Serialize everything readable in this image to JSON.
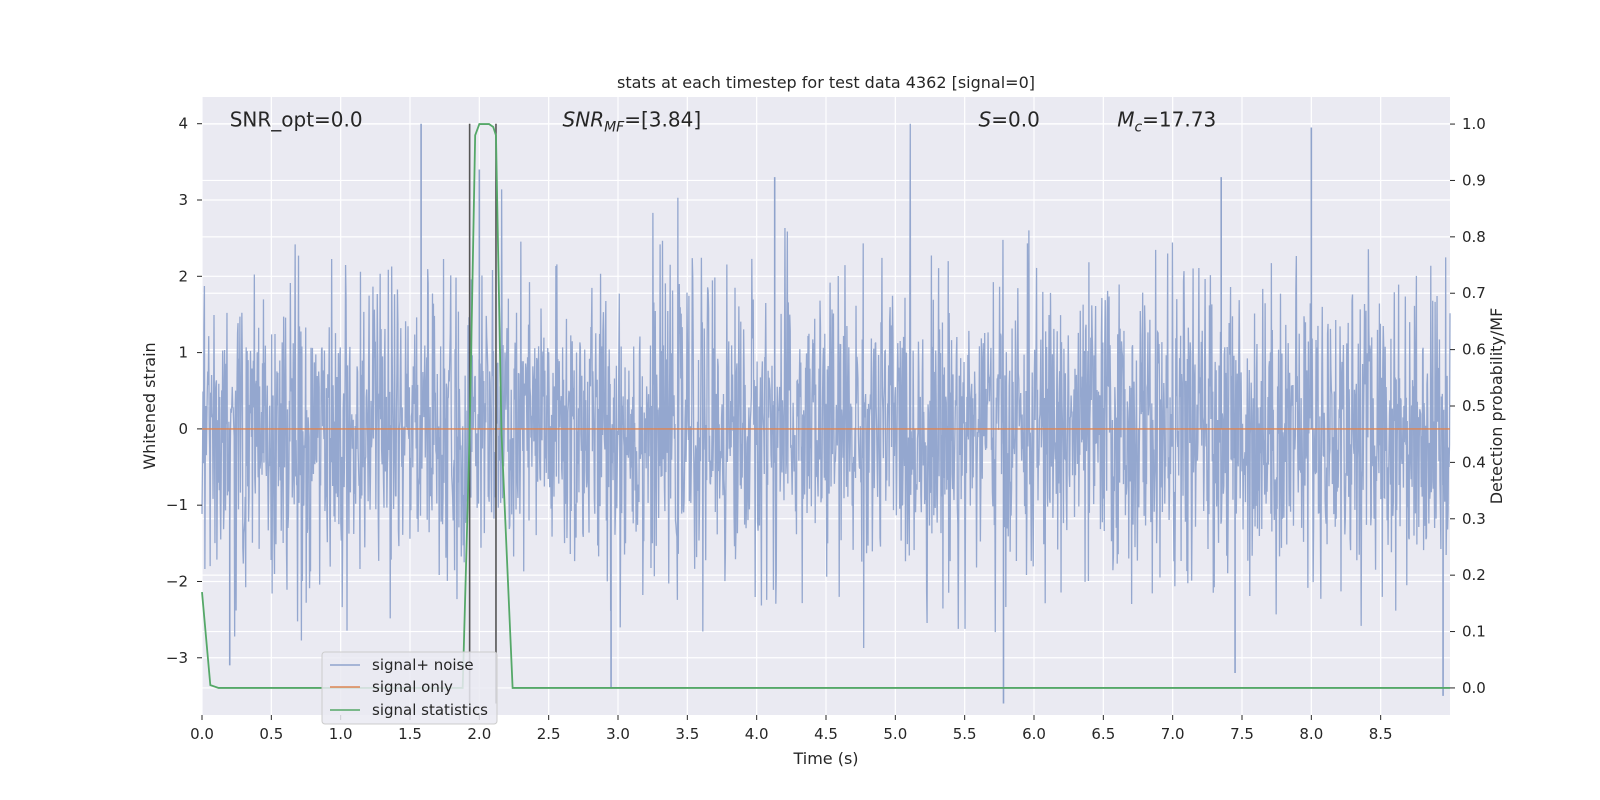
{
  "chart_data": {
    "type": "line",
    "title": "stats at each timestep for test data 4362 [signal=0]",
    "xlabel": "Time (s)",
    "ylabel": "Whitened strain",
    "y2label": "Detection probability/MF",
    "xlim": [
      0.0,
      9.0
    ],
    "ylim": [
      -3.75,
      4.35
    ],
    "y2lim": [
      -0.048,
      1.048
    ],
    "grid": true,
    "legend_position": "lower-left",
    "x_ticks": [
      "0.0",
      "0.5",
      "1.0",
      "1.5",
      "2.0",
      "2.5",
      "3.0",
      "3.5",
      "4.0",
      "4.5",
      "5.0",
      "5.5",
      "6.0",
      "6.5",
      "7.0",
      "7.5",
      "8.0",
      "8.5"
    ],
    "x_tick_values": [
      0.0,
      0.5,
      1.0,
      1.5,
      2.0,
      2.5,
      3.0,
      3.5,
      4.0,
      4.5,
      5.0,
      5.5,
      6.0,
      6.5,
      7.0,
      7.5,
      8.0,
      8.5
    ],
    "y_ticks": [
      "4",
      "3",
      "2",
      "1",
      "0",
      "−1",
      "−2",
      "−3"
    ],
    "y_tick_values": [
      4,
      3,
      2,
      1,
      0,
      -1,
      -2,
      -3
    ],
    "y2_ticks": [
      "1.0",
      "0.9",
      "0.8",
      "0.7",
      "0.6",
      "0.5",
      "0.4",
      "0.3",
      "0.2",
      "0.1",
      "0.0"
    ],
    "y2_tick_values": [
      1.0,
      0.9,
      0.8,
      0.7,
      0.6,
      0.5,
      0.4,
      0.3,
      0.2,
      0.1,
      0.0
    ],
    "annotations": [
      {
        "text": "SNR_opt=0.0",
        "x": 0.2,
        "y": 4.0
      },
      {
        "text": "SNR",
        "sub": "MF",
        "rest": "=[3.84]",
        "italic": true,
        "x": 2.6,
        "y": 4.0
      },
      {
        "text": "S",
        "rest": "=0.0",
        "italic": true,
        "x": 5.6,
        "y": 4.0
      },
      {
        "text": "M",
        "sub": "c",
        "rest": "=17.73",
        "italic": true,
        "x": 6.6,
        "y": 4.0
      }
    ],
    "vlines": [
      {
        "x": 1.93,
        "ymin": -3.6,
        "ymax": 4.0,
        "color": "#555555"
      },
      {
        "x": 2.12,
        "ymin": -3.6,
        "ymax": 4.0,
        "color": "#555555"
      }
    ],
    "series": [
      {
        "name": "signal+ noise",
        "color": "#8fa3cc",
        "axis": "left",
        "kind": "noise",
        "mean": 0.0,
        "std": 0.95,
        "range": [
          -3.6,
          4.0
        ],
        "peaks": [
          {
            "x": 1.58,
            "y": 4.0
          },
          {
            "x": 8.0,
            "y": 3.95
          },
          {
            "x": 2.0,
            "y": 3.4
          },
          {
            "x": 4.13,
            "y": 3.3
          },
          {
            "x": 7.35,
            "y": 3.3
          },
          {
            "x": 2.95,
            "y": -3.4
          },
          {
            "x": 5.78,
            "y": -3.6
          },
          {
            "x": 8.95,
            "y": -3.5
          },
          {
            "x": 0.2,
            "y": -3.1
          },
          {
            "x": 7.45,
            "y": -3.2
          }
        ]
      },
      {
        "name": "signal only",
        "color": "#dd8452",
        "axis": "left",
        "x": [
          0.0,
          9.0
        ],
        "y": [
          0.0,
          0.0
        ]
      },
      {
        "name": "signal statistics",
        "color": "#55a868",
        "axis": "right",
        "x": [
          0.0,
          0.06,
          0.12,
          1.88,
          1.93,
          1.97,
          2.0,
          2.04,
          2.07,
          2.1,
          2.12,
          2.16,
          2.24,
          9.0
        ],
        "y": [
          0.17,
          0.005,
          0.0,
          0.0,
          0.45,
          0.98,
          1.0,
          1.0,
          1.0,
          0.995,
          0.98,
          0.45,
          0.0,
          0.0
        ]
      }
    ]
  }
}
